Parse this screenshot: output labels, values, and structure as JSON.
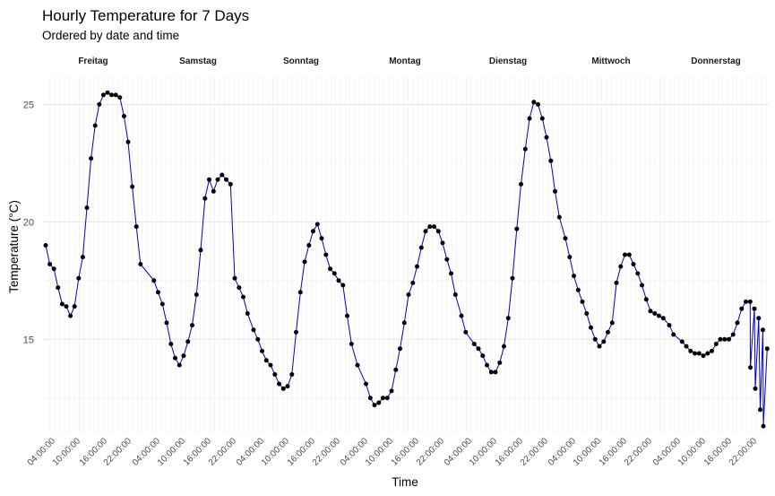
{
  "chart_data": {
    "type": "line",
    "title": "Hourly Temperature for 7 Days",
    "subtitle": "Ordered by date and time",
    "xlabel": "Time",
    "ylabel": "Temperature (°C)",
    "ylim": [
      11.0,
      26.2
    ],
    "yticks": [
      15,
      20,
      25
    ],
    "grid": true,
    "legend": "none",
    "line_color": "#0000cc",
    "point_color": "#000000",
    "facets": [
      "Freitag",
      "Samstag",
      "Sonntag",
      "Montag",
      "Dienstag",
      "Mittwoch",
      "Donnerstag"
    ],
    "x_tick_labels": [
      "04:00:00",
      "10:00:00",
      "16:00:00",
      "22:00:00"
    ],
    "days": [
      {
        "facet": "Freitag",
        "hours": [
          0,
          1,
          2,
          3,
          4,
          5,
          6,
          7,
          8,
          9,
          10,
          11,
          12,
          13,
          14,
          15,
          16,
          17,
          18,
          19,
          20,
          21,
          22,
          23
        ],
        "values": [
          19.0,
          18.2,
          18.0,
          17.2,
          16.5,
          16.4,
          16.0,
          16.4,
          17.6,
          18.5,
          20.6,
          22.7,
          24.1,
          25.0,
          25.4,
          25.5,
          25.4,
          25.4,
          25.3,
          24.5,
          23.4,
          21.5,
          19.8,
          18.2
        ]
      },
      {
        "facet": "Samstag",
        "hours": [
          1,
          2,
          3,
          4,
          5,
          6,
          7,
          8,
          9,
          10,
          11,
          12,
          13,
          14,
          15,
          16,
          17,
          18,
          19,
          20,
          21,
          22,
          23
        ],
        "values": [
          17.5,
          17.0,
          16.5,
          15.7,
          14.8,
          14.2,
          13.9,
          14.3,
          14.9,
          15.6,
          16.9,
          18.8,
          21.0,
          21.8,
          21.3,
          21.8,
          22.0,
          21.8,
          21.6,
          17.6,
          17.2,
          16.8,
          16.1
        ]
      },
      {
        "facet": "Sonntag",
        "hours": [
          0,
          1,
          2,
          3,
          4,
          5,
          6,
          7,
          8,
          9,
          10,
          11,
          12,
          13,
          14,
          15,
          16,
          17,
          18,
          19,
          20,
          21,
          22,
          23
        ],
        "values": [
          15.4,
          15.0,
          14.5,
          14.1,
          13.9,
          13.5,
          13.1,
          12.9,
          13.0,
          13.5,
          15.3,
          17.0,
          18.3,
          19.0,
          19.6,
          19.9,
          19.3,
          18.6,
          18.0,
          17.8,
          17.5,
          17.3,
          16.0,
          14.8
        ]
      },
      {
        "facet": "Montag",
        "hours": [
          0,
          2,
          3,
          4,
          5,
          6,
          7,
          8,
          9,
          10,
          11,
          12,
          13,
          14,
          15,
          16,
          17,
          18,
          19,
          20,
          21,
          22,
          23
        ],
        "values": [
          13.9,
          13.1,
          12.5,
          12.2,
          12.3,
          12.5,
          12.5,
          12.8,
          13.7,
          14.6,
          15.7,
          16.9,
          17.4,
          18.1,
          18.9,
          19.6,
          19.8,
          19.8,
          19.6,
          19.1,
          18.4,
          17.8,
          16.9
        ]
      },
      {
        "facet": "Dienstag",
        "hours": [
          0,
          1,
          3,
          4,
          5,
          6,
          7,
          8,
          9,
          10,
          11,
          12,
          13,
          14,
          15,
          16,
          17,
          18,
          19,
          20,
          21,
          22,
          23
        ],
        "values": [
          16.0,
          15.3,
          14.8,
          14.6,
          14.3,
          13.9,
          13.6,
          13.6,
          14.0,
          14.7,
          15.9,
          17.6,
          19.7,
          21.6,
          23.1,
          24.4,
          25.1,
          25.0,
          24.4,
          23.6,
          22.6,
          21.3,
          20.2
        ]
      },
      {
        "facet": "Mittwoch",
        "hours": [
          0,
          1,
          2,
          3,
          4,
          5,
          6,
          7,
          8,
          9,
          10,
          11,
          12,
          13,
          14,
          15,
          16,
          17,
          18,
          19,
          20,
          21,
          22,
          23
        ],
        "values": [
          19.3,
          18.5,
          17.7,
          17.1,
          16.6,
          16.1,
          15.5,
          15.0,
          14.7,
          14.9,
          15.3,
          15.7,
          17.4,
          18.1,
          18.6,
          18.6,
          18.2,
          17.8,
          17.3,
          16.7,
          16.2,
          16.1,
          16.0,
          15.9
        ]
      },
      {
        "facet": "Donnerstag",
        "hours": [
          0,
          1,
          3,
          4,
          5,
          6,
          7,
          8,
          9,
          10,
          11,
          12,
          13,
          14,
          15,
          16,
          17,
          18,
          19,
          20,
          21,
          22,
          23
        ],
        "values": [
          15.6,
          15.2,
          14.9,
          14.7,
          14.5,
          14.4,
          14.4,
          14.3,
          14.4,
          14.5,
          14.8,
          15.0,
          15.0,
          15.0,
          15.2,
          15.7,
          16.3,
          16.6,
          16.6,
          16.3,
          15.9,
          15.4,
          14.6
        ]
      },
      {
        "facet": "Donnerstag",
        "hours": [
          21,
          22,
          23
        ],
        "values": [
          13.8,
          12.9,
          12.0
        ],
        "continuation": true
      }
    ],
    "tail_values": [
      11.3
    ]
  }
}
